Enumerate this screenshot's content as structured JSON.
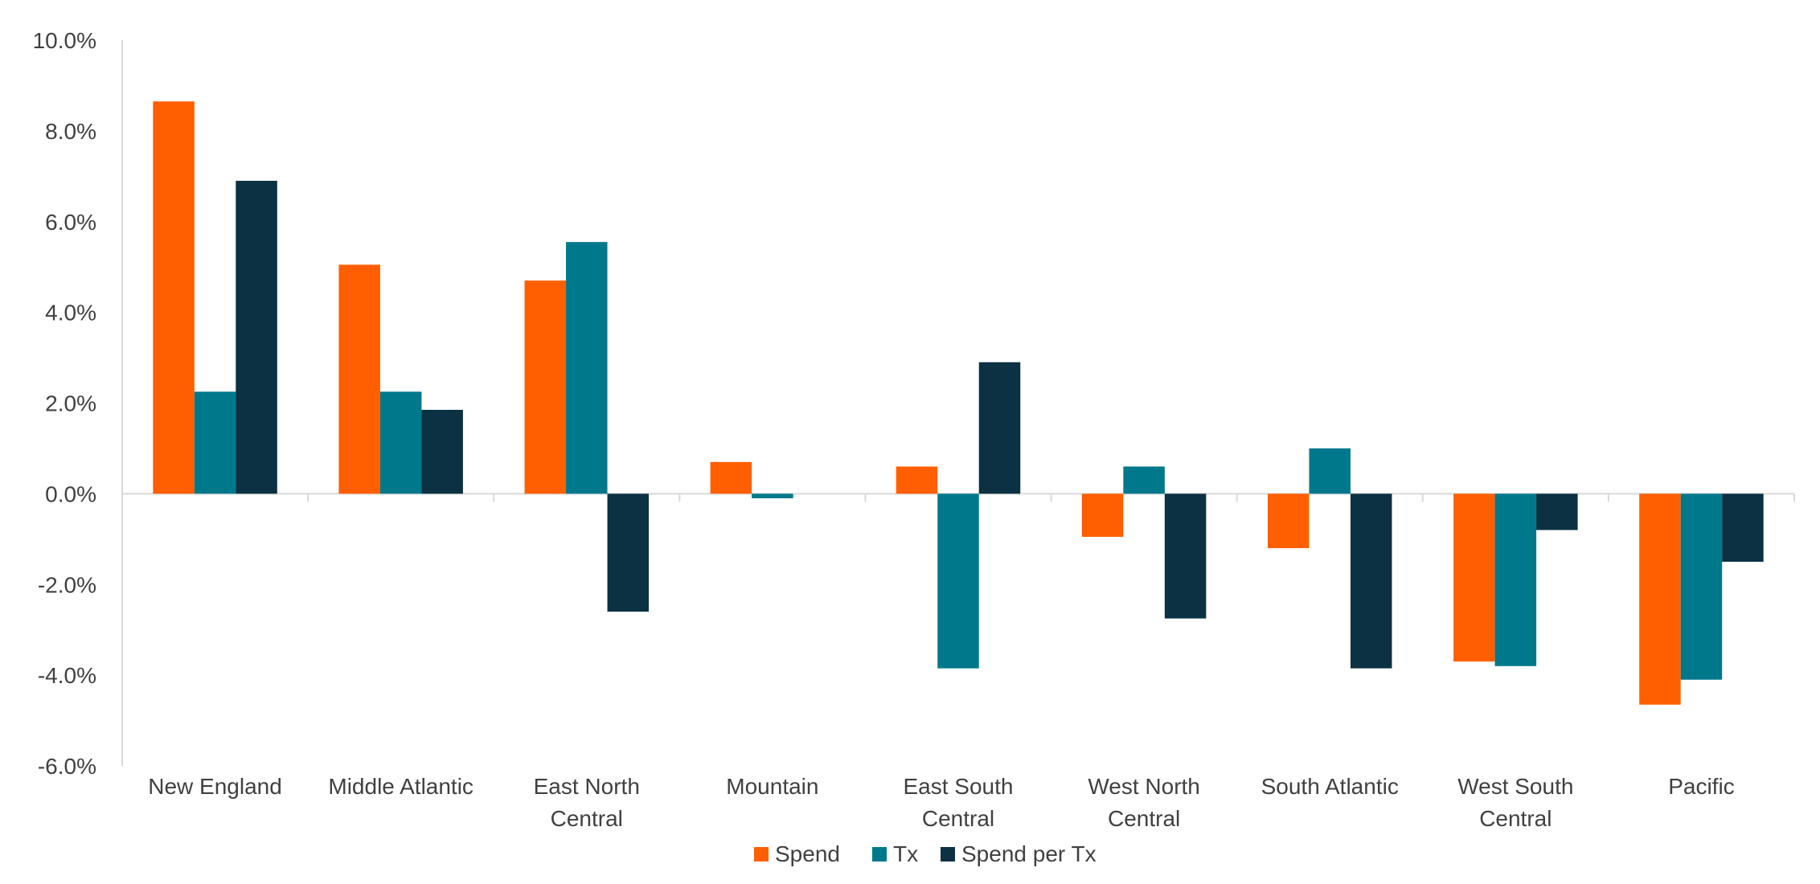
{
  "chart_data": {
    "type": "bar",
    "title": "",
    "xlabel": "",
    "ylabel": "",
    "ylim": [
      -6.0,
      10.0
    ],
    "ytick_step": 2.0,
    "ytick_format": "percent_1dp",
    "ytick_labels": [
      "-6.0%",
      "-4.0%",
      "-2.0%",
      "0.0%",
      "2.0%",
      "4.0%",
      "6.0%",
      "8.0%",
      "10.0%"
    ],
    "grid": false,
    "legend_position": "bottom-center",
    "categories": [
      [
        "New England"
      ],
      [
        "Middle Atlantic"
      ],
      [
        "East North",
        "Central"
      ],
      [
        "Mountain"
      ],
      [
        "East South",
        "Central"
      ],
      [
        "West North",
        "Central"
      ],
      [
        "South Atlantic"
      ],
      [
        "West South",
        "Central"
      ],
      [
        "Pacific"
      ]
    ],
    "series": [
      {
        "name": "Spend",
        "color": "#FF5F00",
        "values": [
          8.65,
          5.05,
          4.7,
          0.7,
          0.6,
          -0.95,
          -1.2,
          -3.7,
          -4.65
        ]
      },
      {
        "name": "Tx",
        "color": "#00788C",
        "values": [
          2.25,
          2.25,
          5.55,
          -0.1,
          -3.85,
          0.6,
          1.0,
          -3.8,
          -4.1
        ]
      },
      {
        "name": "Spend per Tx",
        "color": "#0B3142",
        "values": [
          6.9,
          1.85,
          -2.6,
          0.0,
          2.9,
          -2.75,
          -3.85,
          -0.8,
          -1.5
        ]
      }
    ]
  }
}
